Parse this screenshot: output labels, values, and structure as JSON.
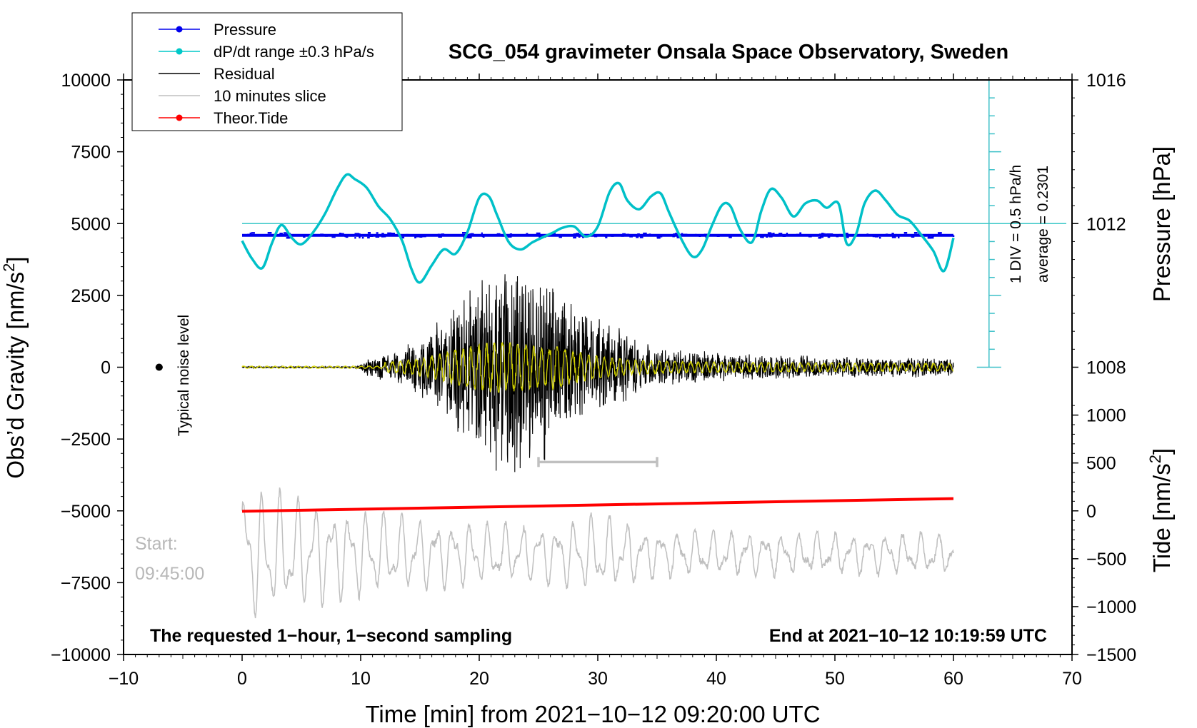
{
  "chart_data": {
    "type": "line",
    "title": "SCG_054 gravimeter Onsala Space Observatory, Sweden",
    "xlabel": "Time [min] from 2021−10−12 09:20:00 UTC",
    "xlim": [
      -10,
      70
    ],
    "x_ticks": [
      -10,
      0,
      10,
      20,
      30,
      40,
      50,
      60,
      70
    ],
    "x_tick_labels": [
      "−10",
      "0",
      "10",
      "20",
      "30",
      "40",
      "50",
      "60",
      "70"
    ],
    "ylabel_left_main": "Obs’d Gravity [nm/s",
    "ylabel_left_sup": "2",
    "ylabel_left_end": "]",
    "ylim_left": [
      -10000,
      10000
    ],
    "y_left_ticks": [
      -10000,
      -7500,
      -5000,
      -2500,
      0,
      2500,
      5000,
      7500,
      10000
    ],
    "y_left_tick_labels": [
      "−10000",
      "−7500",
      "−5000",
      "−2500",
      "0",
      "2500",
      "5000",
      "7500",
      "10000"
    ],
    "ylabel_pressure": "Pressure [hPa]",
    "pressure_ticks": [
      1008,
      1012,
      1016
    ],
    "pressure_tick_labels": [
      "1008",
      "1012",
      "1016"
    ],
    "pressure_axis_ref": {
      "value": 1012,
      "gravity_equiv": 5000,
      "per_hpa": 1250
    },
    "ylabel_tide_main": "Tide [nm/s",
    "ylabel_tide_sup": "2",
    "ylabel_tide_end": "]",
    "tide_ticks": [
      -1500,
      -1000,
      -500,
      0,
      500,
      1000
    ],
    "tide_tick_labels": [
      "−1500",
      "−1000",
      "−500",
      "0",
      "500",
      "1000"
    ],
    "tide_axis_ref": {
      "gravity_at_zero": -5000,
      "scale": 3.3333
    },
    "dpdt_scale": {
      "label_div": "1 DIV = 0.5 hPa/h",
      "label_avg": "average = 0.2301",
      "x": 63,
      "y_range": [
        0,
        10000
      ],
      "major_every": 2500,
      "minor_every": 625
    },
    "legend": {
      "position": "top-left",
      "entries": [
        {
          "label": "Pressure",
          "color": "#0000ee",
          "marker": true
        },
        {
          "label": "dP/dt range ±0.3 hPa/s",
          "color": "#00c8c8",
          "marker": true
        },
        {
          "label": "Residual",
          "color": "#000000",
          "marker": false
        },
        {
          "label": "10 minutes slice",
          "color": "#bfbfbf",
          "marker": false
        },
        {
          "label": "Theor.Tide",
          "color": "#ff0000",
          "marker": true
        }
      ]
    },
    "series": [
      {
        "name": "Pressure",
        "color": "#0000ee",
        "x": [
          0,
          60
        ],
        "y": [
          4590,
          4590
        ]
      },
      {
        "name": "dP/dt",
        "color": "#00c0c8",
        "x": [
          0,
          0.8,
          1.7,
          2.5,
          3.3,
          4.2,
          5.0,
          6.0,
          7.0,
          8.0,
          8.8,
          9.5,
          10.5,
          11.5,
          12.5,
          13.5,
          14.3,
          15.0,
          16.0,
          17.0,
          18.0,
          19.0,
          20.0,
          20.8,
          21.5,
          22.5,
          23.5,
          24.5,
          25.5,
          26.3,
          27.0,
          28.0,
          29.0,
          30.0,
          31.0,
          31.8,
          32.5,
          33.5,
          34.5,
          35.3,
          36.0,
          37.0,
          38.0,
          38.8,
          39.7,
          40.5,
          41.2,
          42.0,
          43.0,
          43.8,
          44.6,
          45.5,
          46.5,
          47.5,
          48.5,
          49.3,
          50.3,
          51.0,
          51.8,
          52.5,
          53.4,
          54.3,
          55.3,
          56.3,
          57.3,
          58.3,
          59.2,
          60.0
        ],
        "y": [
          4400,
          3800,
          3450,
          4300,
          4950,
          4500,
          4280,
          4700,
          5350,
          6200,
          6700,
          6550,
          6250,
          5600,
          5150,
          4400,
          3400,
          2950,
          3550,
          4100,
          3950,
          4700,
          5900,
          5950,
          5300,
          4350,
          4100,
          4350,
          4550,
          4700,
          4850,
          4900,
          4550,
          4900,
          6100,
          6400,
          5800,
          5500,
          5950,
          6050,
          5400,
          4500,
          3850,
          4100,
          5000,
          5650,
          5600,
          4800,
          4350,
          5450,
          6200,
          5900,
          5250,
          5700,
          5800,
          5550,
          5700,
          4300,
          4650,
          5700,
          6150,
          5800,
          5300,
          5100,
          4600,
          4050,
          3350,
          4500
        ]
      },
      {
        "name": "Residual",
        "color": "#000000",
        "note": "Seismic residual: quiet until ~9.5 min, max envelope ~±3500 nm/s² near 21 min, decaying after ~35 min."
      },
      {
        "name": "10 minutes slice",
        "color": "#bfbfbf",
        "note": "Zoomed 10-minute slice of the residual (start 09:45:00) plotted around y = −6500, amplitude ~±3000."
      },
      {
        "name": "Theor.Tide",
        "color": "#ff0000",
        "x": [
          0,
          60
        ],
        "tide_values": [
          -5,
          128
        ]
      }
    ],
    "reference_lines": [
      {
        "name": "dP/dt zero",
        "y": 5000,
        "color": "#3cc8c8"
      }
    ],
    "bracket": {
      "x_start": 25,
      "x_end": 35,
      "y": -3300,
      "color": "#c0c0c0"
    },
    "noise_marker": {
      "x": -7,
      "y": 0,
      "label": "Typical noise level"
    },
    "annotations": {
      "bottom_left": "The requested 1−hour, 1−second sampling",
      "bottom_right": "End at 2021−10−12 10:19:59 UTC",
      "slice_start_label": "Start:",
      "slice_start_time": "09:45:00"
    }
  }
}
